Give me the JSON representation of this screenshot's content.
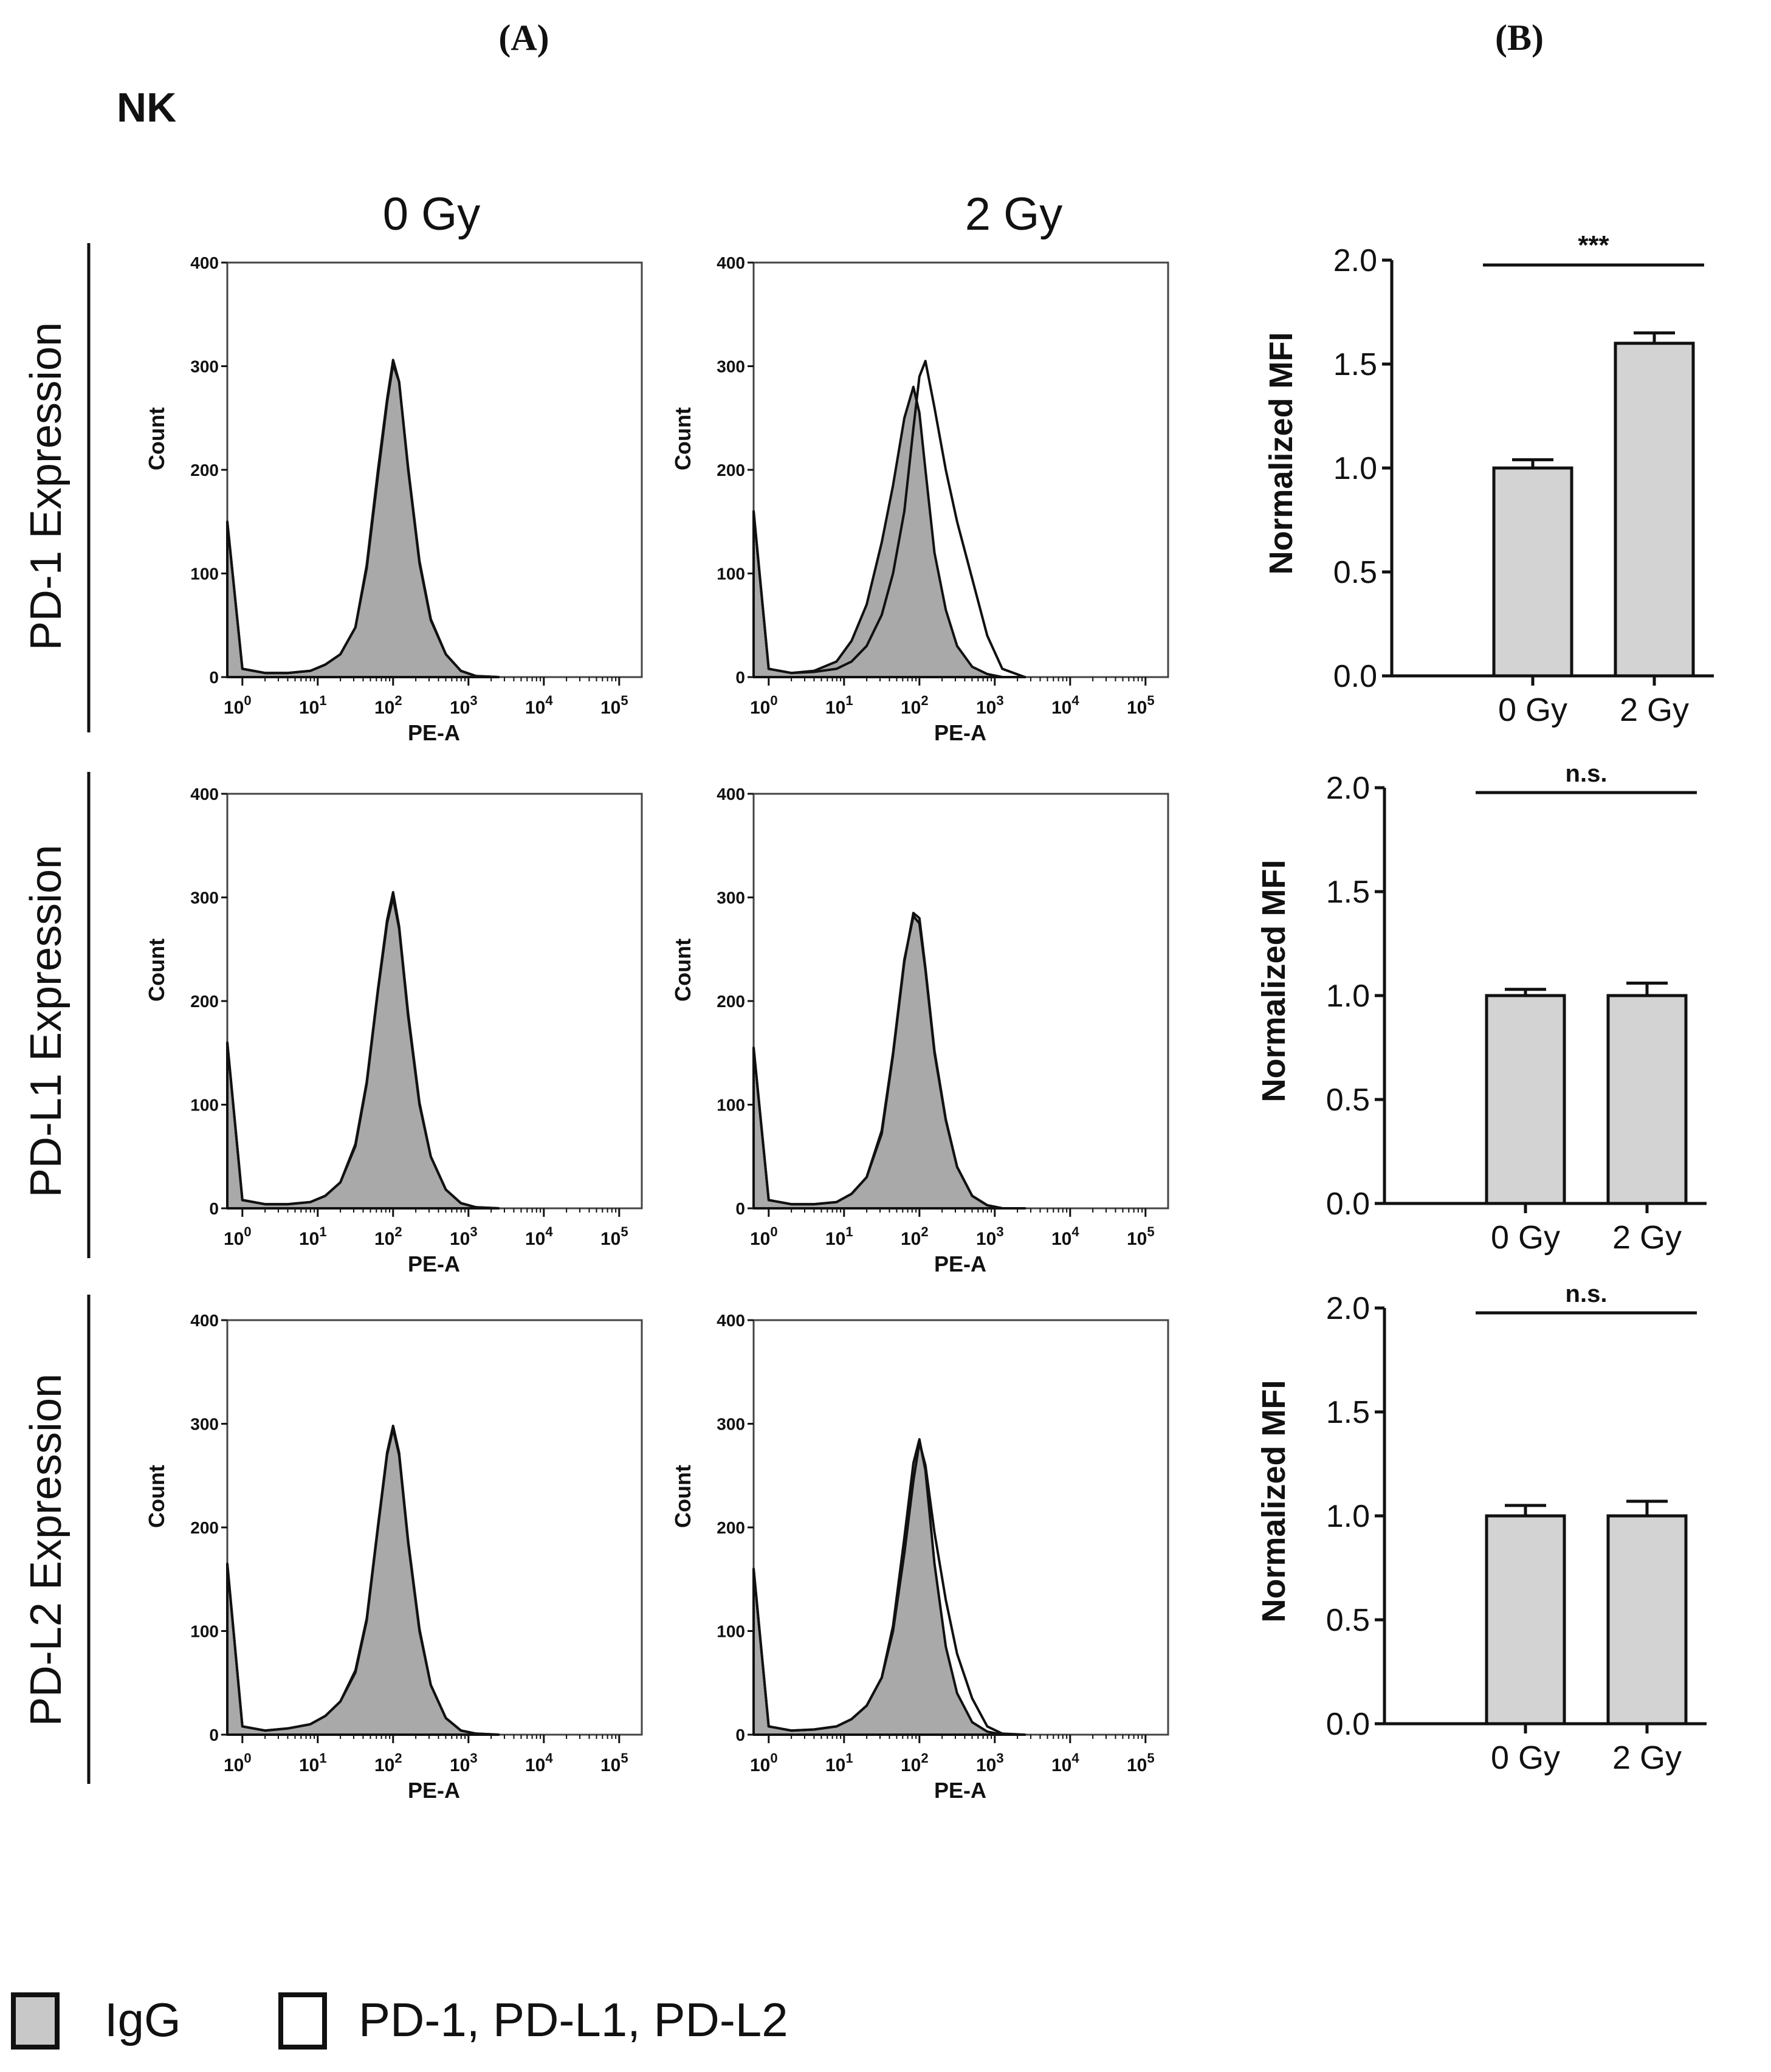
{
  "panel_labels": {
    "a": "(A)",
    "b": "(B)"
  },
  "cell_type": "NK",
  "column_headers": [
    "0 Gy",
    "2 Gy"
  ],
  "row_labels": [
    "PD-1 Expression",
    "PD-L1 Expression",
    "PD-L2 Expression"
  ],
  "legend": {
    "igg": "IgG",
    "target": "PD-1, PD-L1, PD-L2",
    "igg_color": "#c8c8c8",
    "target_color": "#ffffff"
  },
  "colors": {
    "histogram_fill": "#a9a9a9",
    "bar_fill": "#d3d3d3",
    "line": "#111111"
  },
  "histogram_axes": {
    "xlabel": "PE-A",
    "ylabel": "Count",
    "yticks": [
      0,
      100,
      200,
      300,
      400
    ],
    "xticks": [
      "10",
      "10",
      "10",
      "10",
      "10",
      "10"
    ],
    "xtick_exponents": [
      "0",
      "1",
      "2",
      "3",
      "4",
      "5"
    ],
    "ylim": [
      0,
      400
    ],
    "x_scale": "log",
    "xlim_log10": [
      -0.2,
      5.3
    ]
  },
  "chart_data": [
    {
      "type": "area",
      "name": "PD-1 Expression 0 Gy",
      "x_log10": [
        -0.2,
        0.0,
        0.3,
        0.6,
        0.9,
        1.1,
        1.3,
        1.5,
        1.65,
        1.8,
        1.92,
        2.0,
        2.08,
        2.2,
        2.35,
        2.5,
        2.7,
        2.9,
        3.1,
        3.4
      ],
      "igg": [
        150,
        8,
        4,
        4,
        6,
        12,
        22,
        48,
        105,
        195,
        265,
        302,
        285,
        200,
        110,
        55,
        22,
        6,
        1,
        0
      ],
      "target": [
        150,
        8,
        4,
        4,
        6,
        12,
        22,
        48,
        108,
        200,
        268,
        306,
        285,
        202,
        112,
        56,
        22,
        6,
        1,
        0
      ]
    },
    {
      "type": "area",
      "name": "PD-1 Expression 2 Gy",
      "x_log10": [
        -0.2,
        0.0,
        0.3,
        0.6,
        0.9,
        1.1,
        1.3,
        1.5,
        1.65,
        1.8,
        1.92,
        2.0,
        2.08,
        2.2,
        2.35,
        2.5,
        2.7,
        2.9,
        3.1,
        3.4
      ],
      "igg": [
        160,
        8,
        4,
        6,
        15,
        35,
        70,
        130,
        185,
        250,
        280,
        255,
        200,
        120,
        65,
        30,
        10,
        3,
        0,
        0
      ],
      "target": [
        160,
        8,
        4,
        5,
        8,
        15,
        30,
        60,
        100,
        160,
        240,
        290,
        305,
        260,
        200,
        150,
        95,
        40,
        8,
        0
      ]
    },
    {
      "type": "area",
      "name": "PD-L1 Expression 0 Gy",
      "x_log10": [
        -0.2,
        0.0,
        0.3,
        0.6,
        0.9,
        1.1,
        1.3,
        1.5,
        1.65,
        1.8,
        1.92,
        2.0,
        2.08,
        2.2,
        2.35,
        2.5,
        2.7,
        2.9,
        3.1,
        3.4
      ],
      "igg": [
        160,
        8,
        4,
        4,
        6,
        12,
        25,
        60,
        120,
        210,
        275,
        300,
        270,
        185,
        100,
        50,
        18,
        5,
        1,
        0
      ],
      "target": [
        160,
        8,
        4,
        4,
        6,
        12,
        25,
        62,
        122,
        212,
        278,
        305,
        272,
        188,
        102,
        50,
        18,
        5,
        1,
        0
      ]
    },
    {
      "type": "area",
      "name": "PD-L1 Expression 2 Gy",
      "x_log10": [
        -0.2,
        0.0,
        0.3,
        0.6,
        0.9,
        1.1,
        1.3,
        1.5,
        1.65,
        1.8,
        1.92,
        2.0,
        2.08,
        2.2,
        2.35,
        2.5,
        2.7,
        2.9,
        3.1,
        3.4
      ],
      "igg": [
        155,
        8,
        4,
        4,
        6,
        14,
        30,
        75,
        150,
        240,
        282,
        275,
        230,
        150,
        85,
        40,
        12,
        3,
        0,
        0
      ],
      "target": [
        155,
        8,
        4,
        4,
        6,
        14,
        30,
        72,
        148,
        238,
        285,
        280,
        232,
        152,
        86,
        40,
        12,
        3,
        0,
        0
      ]
    },
    {
      "type": "area",
      "name": "PD-L2 Expression 0 Gy",
      "x_log10": [
        -0.2,
        0.0,
        0.3,
        0.6,
        0.9,
        1.1,
        1.3,
        1.5,
        1.65,
        1.8,
        1.92,
        2.0,
        2.08,
        2.2,
        2.35,
        2.5,
        2.7,
        2.9,
        3.1,
        3.4
      ],
      "igg": [
        165,
        8,
        4,
        6,
        10,
        18,
        32,
        60,
        110,
        200,
        270,
        295,
        270,
        185,
        100,
        48,
        16,
        4,
        1,
        0
      ],
      "target": [
        165,
        8,
        4,
        6,
        10,
        18,
        32,
        62,
        112,
        202,
        272,
        298,
        272,
        187,
        102,
        48,
        16,
        4,
        1,
        0
      ]
    },
    {
      "type": "area",
      "name": "PD-L2 Expression 2 Gy",
      "x_log10": [
        -0.2,
        0.0,
        0.3,
        0.6,
        0.9,
        1.1,
        1.3,
        1.5,
        1.65,
        1.8,
        1.92,
        2.0,
        2.08,
        2.2,
        2.35,
        2.5,
        2.7,
        2.9,
        3.1,
        3.4
      ],
      "igg": [
        160,
        8,
        4,
        5,
        8,
        15,
        28,
        55,
        105,
        190,
        262,
        285,
        255,
        165,
        85,
        40,
        12,
        3,
        0,
        0
      ],
      "target": [
        160,
        8,
        4,
        5,
        8,
        15,
        28,
        55,
        100,
        175,
        245,
        282,
        260,
        195,
        130,
        78,
        35,
        8,
        1,
        0
      ]
    },
    {
      "type": "bar",
      "name": "PD-1",
      "categories": [
        "0 Gy",
        "2 Gy"
      ],
      "values": [
        1.0,
        1.6
      ],
      "errors": [
        0.04,
        0.05
      ],
      "ylabel": "Normalized MFI",
      "ylim": [
        0.0,
        2.0
      ],
      "yticks": [
        "0.0",
        "0.5",
        "1.0",
        "1.5",
        "2.0"
      ],
      "significance": "***"
    },
    {
      "type": "bar",
      "name": "PD-L1",
      "categories": [
        "0 Gy",
        "2 Gy"
      ],
      "values": [
        1.0,
        1.0
      ],
      "errors": [
        0.03,
        0.06
      ],
      "ylabel": "Normalized MFI",
      "ylim": [
        0.0,
        2.0
      ],
      "yticks": [
        "0.0",
        "0.5",
        "1.0",
        "1.5",
        "2.0"
      ],
      "significance": "n.s."
    },
    {
      "type": "bar",
      "name": "PD-L2",
      "categories": [
        "0 Gy",
        "2 Gy"
      ],
      "values": [
        1.0,
        1.0
      ],
      "errors": [
        0.05,
        0.07
      ],
      "ylabel": "Normalized MFI",
      "ylim": [
        0.0,
        2.0
      ],
      "yticks": [
        "0.0",
        "0.5",
        "1.0",
        "1.5",
        "2.0"
      ],
      "significance": "n.s."
    }
  ]
}
